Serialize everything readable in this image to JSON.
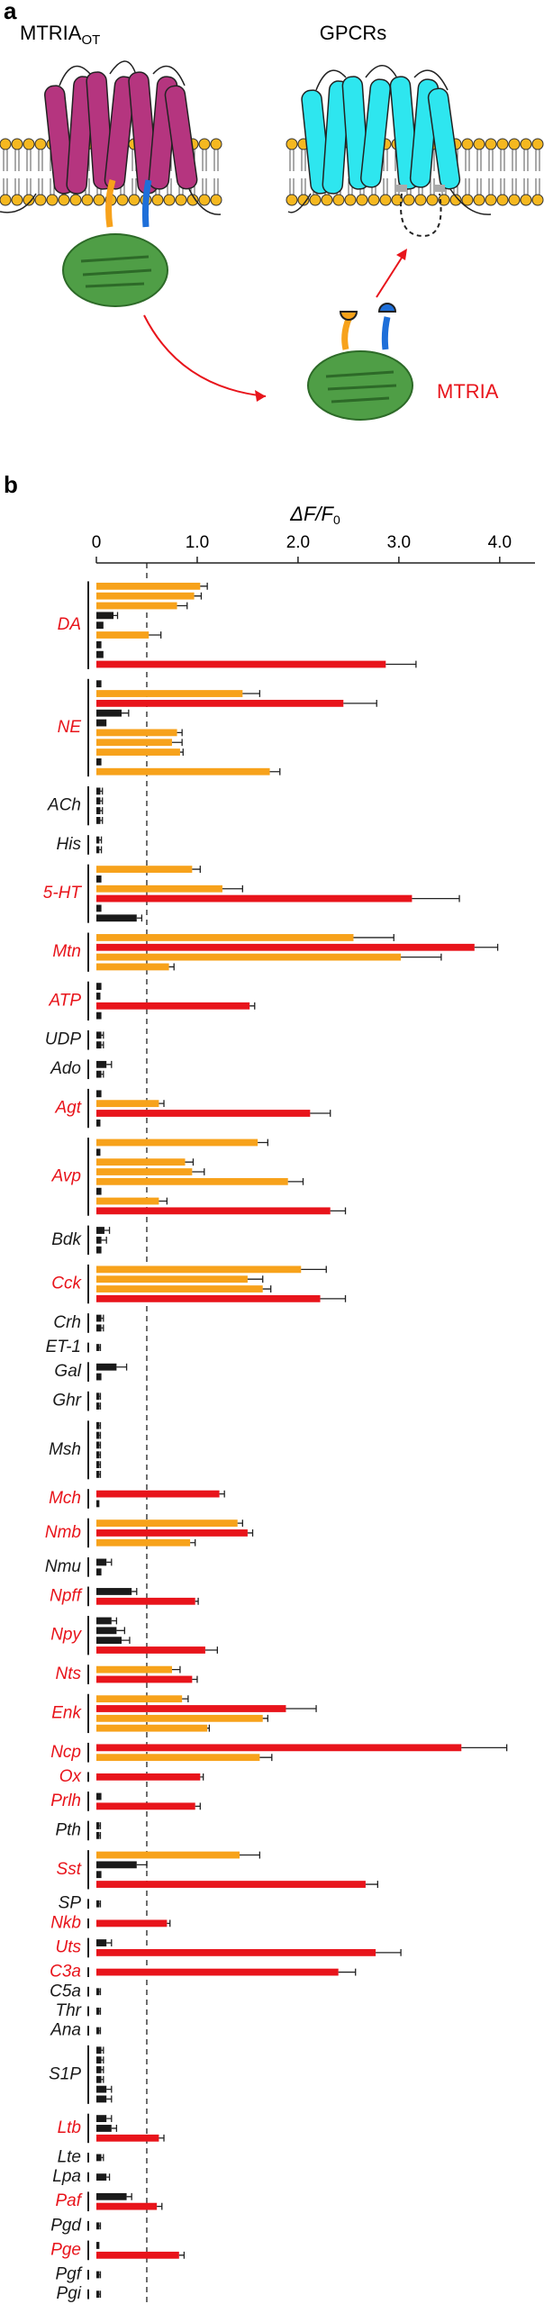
{
  "panel_a": {
    "letter": "a",
    "left_title": "MTRIA",
    "left_title_sub": "OT",
    "right_title": "GPCRs",
    "product_label": "MTRIA"
  },
  "chart_data": {
    "type": "bar",
    "panel_letter": "b",
    "orientation": "horizontal",
    "xlabel": "ΔF/F",
    "xlabel_sub": "0",
    "xlim": [
      0,
      4.35
    ],
    "xticks": [
      0,
      {
        "value": 1,
        "label": "1.0"
      },
      {
        "value": 2,
        "label": "2.0"
      },
      {
        "value": 3,
        "label": "3.0"
      },
      {
        "value": 4,
        "label": "4.0"
      }
    ],
    "reference_line": 0.5,
    "groups": [
      {
        "label": "DA",
        "label_color": "#e8141b",
        "values": [
          1.03,
          0.97,
          0.8,
          0.17,
          0.07,
          0.52,
          0.05,
          0.07,
          2.87
        ],
        "errors": [
          0.07,
          0.07,
          0.1,
          0.04,
          0,
          0.12,
          0,
          0,
          0.3
        ],
        "colors": [
          "#f7a21b",
          "#f7a21b",
          "#f7a21b",
          "#1a1a1a",
          "#1a1a1a",
          "#f7a21b",
          "#1a1a1a",
          "#1a1a1a",
          "#e8141b"
        ]
      },
      {
        "label": "NE",
        "label_color": "#e8141b",
        "values": [
          0.05,
          1.45,
          2.45,
          0.25,
          0.1,
          0.8,
          0.75,
          0.83,
          0.05,
          1.72
        ],
        "errors": [
          0,
          0.17,
          0.33,
          0.07,
          0,
          0.05,
          0.1,
          0.03,
          0,
          0.1
        ],
        "colors": [
          "#1a1a1a",
          "#f7a21b",
          "#e8141b",
          "#1a1a1a",
          "#1a1a1a",
          "#f7a21b",
          "#f7a21b",
          "#f7a21b",
          "#1a1a1a",
          "#f7a21b"
        ]
      },
      {
        "label": "ACh",
        "label_color": "#1a1a1a",
        "values": [
          0.04,
          0.04,
          0.04,
          0.04
        ],
        "errors": [
          0.02,
          0.02,
          0.02,
          0.02
        ],
        "colors": [
          "#1a1a1a",
          "#1a1a1a",
          "#1a1a1a",
          "#1a1a1a"
        ]
      },
      {
        "label": "His",
        "label_color": "#1a1a1a",
        "values": [
          0.03,
          0.03
        ],
        "errors": [
          0.02,
          0.02
        ],
        "colors": [
          "#1a1a1a",
          "#1a1a1a"
        ]
      },
      {
        "label": "5-HT",
        "label_color": "#e8141b",
        "values": [
          0.95,
          0.05,
          1.25,
          3.13,
          0.05,
          0.4
        ],
        "errors": [
          0.08,
          0,
          0.2,
          0.47,
          0,
          0.05
        ],
        "colors": [
          "#f7a21b",
          "#1a1a1a",
          "#f7a21b",
          "#e8141b",
          "#1a1a1a",
          "#1a1a1a"
        ]
      },
      {
        "label": "Mtn",
        "label_color": "#e8141b",
        "values": [
          2.55,
          3.75,
          3.02,
          0.72
        ],
        "errors": [
          0.4,
          0.23,
          0.4,
          0.05
        ],
        "colors": [
          "#f7a21b",
          "#e8141b",
          "#f7a21b",
          "#f7a21b"
        ]
      },
      {
        "label": "ATP",
        "label_color": "#e8141b",
        "values": [
          0.05,
          0.04,
          1.52,
          0.05
        ],
        "errors": [
          0,
          0,
          0.05,
          0
        ],
        "colors": [
          "#1a1a1a",
          "#1a1a1a",
          "#e8141b",
          "#1a1a1a"
        ]
      },
      {
        "label": "UDP",
        "label_color": "#1a1a1a",
        "values": [
          0.05,
          0.05
        ],
        "errors": [
          0.02,
          0.02
        ],
        "colors": [
          "#1a1a1a",
          "#1a1a1a"
        ]
      },
      {
        "label": "Ado",
        "label_color": "#1a1a1a",
        "values": [
          0.1,
          0.05
        ],
        "errors": [
          0.05,
          0.02
        ],
        "colors": [
          "#1a1a1a",
          "#1a1a1a"
        ]
      },
      {
        "label": "Agt",
        "label_color": "#e8141b",
        "values": [
          0.05,
          0.62,
          2.12,
          0.04
        ],
        "errors": [
          0,
          0.05,
          0.2,
          0
        ],
        "colors": [
          "#1a1a1a",
          "#f7a21b",
          "#e8141b",
          "#1a1a1a"
        ]
      },
      {
        "label": "Avp",
        "label_color": "#e8141b",
        "values": [
          1.6,
          0.04,
          0.88,
          0.95,
          1.9,
          0.05,
          0.62,
          2.32
        ],
        "errors": [
          0.1,
          0,
          0.08,
          0.12,
          0.15,
          0,
          0.08,
          0.15
        ],
        "colors": [
          "#f7a21b",
          "#1a1a1a",
          "#f7a21b",
          "#f7a21b",
          "#f7a21b",
          "#1a1a1a",
          "#f7a21b",
          "#e8141b"
        ]
      },
      {
        "label": "Bdk",
        "label_color": "#1a1a1a",
        "values": [
          0.08,
          0.05,
          0.05
        ],
        "errors": [
          0.05,
          0.05,
          0
        ],
        "colors": [
          "#1a1a1a",
          "#1a1a1a",
          "#1a1a1a"
        ]
      },
      {
        "label": "Cck",
        "label_color": "#e8141b",
        "values": [
          2.03,
          1.5,
          1.65,
          2.22
        ],
        "errors": [
          0.25,
          0.15,
          0.08,
          0.25
        ],
        "colors": [
          "#f7a21b",
          "#f7a21b",
          "#f7a21b",
          "#e8141b"
        ]
      },
      {
        "label": "Crh",
        "label_color": "#1a1a1a",
        "values": [
          0.05,
          0.05
        ],
        "errors": [
          0.02,
          0.02
        ],
        "colors": [
          "#1a1a1a",
          "#1a1a1a"
        ]
      },
      {
        "label": "ET-1",
        "label_color": "#1a1a1a",
        "values": [
          0.03
        ],
        "errors": [
          0.01
        ],
        "colors": [
          "#1a1a1a"
        ]
      },
      {
        "label": "Gal",
        "label_color": "#1a1a1a",
        "values": [
          0.2,
          0.05
        ],
        "errors": [
          0.1,
          0
        ],
        "colors": [
          "#1a1a1a",
          "#1a1a1a"
        ]
      },
      {
        "label": "Ghr",
        "label_color": "#1a1a1a",
        "values": [
          0.03,
          0.03
        ],
        "errors": [
          0.01,
          0.01
        ],
        "colors": [
          "#1a1a1a",
          "#1a1a1a"
        ]
      },
      {
        "label": "Msh",
        "label_color": "#1a1a1a",
        "values": [
          0.03,
          0.03,
          0.03,
          0.03,
          0.03,
          0.03
        ],
        "errors": [
          0.01,
          0.01,
          0.01,
          0.01,
          0.01,
          0.01
        ],
        "colors": [
          "#1a1a1a",
          "#1a1a1a",
          "#1a1a1a",
          "#1a1a1a",
          "#1a1a1a",
          "#1a1a1a"
        ]
      },
      {
        "label": "Mch",
        "label_color": "#e8141b",
        "values": [
          1.22,
          0.03
        ],
        "errors": [
          0.05,
          0
        ],
        "colors": [
          "#e8141b",
          "#1a1a1a"
        ]
      },
      {
        "label": "Nmb",
        "label_color": "#e8141b",
        "values": [
          1.4,
          1.5,
          0.93
        ],
        "errors": [
          0.05,
          0.05,
          0.05
        ],
        "colors": [
          "#f7a21b",
          "#e8141b",
          "#f7a21b"
        ]
      },
      {
        "label": "Nmu",
        "label_color": "#1a1a1a",
        "values": [
          0.1,
          0.05
        ],
        "errors": [
          0.05,
          0
        ],
        "colors": [
          "#1a1a1a",
          "#1a1a1a"
        ]
      },
      {
        "label": "Npff",
        "label_color": "#e8141b",
        "values": [
          0.35,
          0.98
        ],
        "errors": [
          0.05,
          0.03
        ],
        "colors": [
          "#1a1a1a",
          "#e8141b"
        ]
      },
      {
        "label": "Npy",
        "label_color": "#e8141b",
        "values": [
          0.15,
          0.2,
          0.25,
          1.08
        ],
        "errors": [
          0.05,
          0.08,
          0.08,
          0.12
        ],
        "colors": [
          "#1a1a1a",
          "#1a1a1a",
          "#1a1a1a",
          "#e8141b"
        ]
      },
      {
        "label": "Nts",
        "label_color": "#e8141b",
        "values": [
          0.75,
          0.95
        ],
        "errors": [
          0.08,
          0.05
        ],
        "colors": [
          "#f7a21b",
          "#e8141b"
        ]
      },
      {
        "label": "Enk",
        "label_color": "#e8141b",
        "values": [
          0.85,
          1.88,
          1.65,
          1.1
        ],
        "errors": [
          0.06,
          0.3,
          0.05,
          0.02
        ],
        "colors": [
          "#f7a21b",
          "#e8141b",
          "#f7a21b",
          "#f7a21b"
        ]
      },
      {
        "label": "Ncp",
        "label_color": "#e8141b",
        "values": [
          3.62,
          1.62
        ],
        "errors": [
          0.45,
          0.12
        ],
        "colors": [
          "#e8141b",
          "#f7a21b"
        ]
      },
      {
        "label": "Ox",
        "label_color": "#e8141b",
        "values": [
          1.03
        ],
        "errors": [
          0.03
        ],
        "colors": [
          "#e8141b"
        ]
      },
      {
        "label": "Prlh",
        "label_color": "#e8141b",
        "values": [
          0.05,
          0.98
        ],
        "errors": [
          0,
          0.05
        ],
        "colors": [
          "#1a1a1a",
          "#e8141b"
        ]
      },
      {
        "label": "Pth",
        "label_color": "#1a1a1a",
        "values": [
          0.03,
          0.03
        ],
        "errors": [
          0.01,
          0.01
        ],
        "colors": [
          "#1a1a1a",
          "#1a1a1a"
        ]
      },
      {
        "label": "Sst",
        "label_color": "#e8141b",
        "values": [
          1.42,
          0.4,
          0.05,
          2.67
        ],
        "errors": [
          0.2,
          0.1,
          0,
          0.12
        ],
        "colors": [
          "#f7a21b",
          "#1a1a1a",
          "#1a1a1a",
          "#e8141b"
        ]
      },
      {
        "label": "SP",
        "label_color": "#1a1a1a",
        "values": [
          0.03
        ],
        "errors": [
          0.01
        ],
        "colors": [
          "#1a1a1a"
        ]
      },
      {
        "label": "Nkb",
        "label_color": "#e8141b",
        "values": [
          0.7
        ],
        "errors": [
          0.03
        ],
        "colors": [
          "#e8141b"
        ]
      },
      {
        "label": "Uts",
        "label_color": "#e8141b",
        "values": [
          0.1,
          2.77
        ],
        "errors": [
          0.05,
          0.25
        ],
        "colors": [
          "#1a1a1a",
          "#e8141b"
        ]
      },
      {
        "label": "C3a",
        "label_color": "#e8141b",
        "values": [
          2.4
        ],
        "errors": [
          0.17
        ],
        "colors": [
          "#e8141b"
        ]
      },
      {
        "label": "C5a",
        "label_color": "#1a1a1a",
        "values": [
          0.03
        ],
        "errors": [
          0.01
        ],
        "colors": [
          "#1a1a1a"
        ]
      },
      {
        "label": "Thr",
        "label_color": "#1a1a1a",
        "values": [
          0.03
        ],
        "errors": [
          0.01
        ],
        "colors": [
          "#1a1a1a"
        ]
      },
      {
        "label": "Ana",
        "label_color": "#1a1a1a",
        "values": [
          0.03
        ],
        "errors": [
          0.01
        ],
        "colors": [
          "#1a1a1a"
        ]
      },
      {
        "label": "S1P",
        "label_color": "#1a1a1a",
        "values": [
          0.05,
          0.05,
          0.05,
          0.05,
          0.1,
          0.1
        ],
        "errors": [
          0.02,
          0.02,
          0.02,
          0.02,
          0.05,
          0.05
        ],
        "colors": [
          "#1a1a1a",
          "#1a1a1a",
          "#1a1a1a",
          "#1a1a1a",
          "#1a1a1a",
          "#1a1a1a"
        ]
      },
      {
        "label": "Ltb",
        "label_color": "#e8141b",
        "values": [
          0.1,
          0.15,
          0.62
        ],
        "errors": [
          0.05,
          0.05,
          0.05
        ],
        "colors": [
          "#1a1a1a",
          "#1a1a1a",
          "#e8141b"
        ]
      },
      {
        "label": "Lte",
        "label_color": "#1a1a1a",
        "values": [
          0.05
        ],
        "errors": [
          0.02
        ],
        "colors": [
          "#1a1a1a"
        ]
      },
      {
        "label": "Lpa",
        "label_color": "#1a1a1a",
        "values": [
          0.1
        ],
        "errors": [
          0.03
        ],
        "colors": [
          "#1a1a1a"
        ]
      },
      {
        "label": "Paf",
        "label_color": "#e8141b",
        "values": [
          0.3,
          0.6
        ],
        "errors": [
          0.05,
          0.05
        ],
        "colors": [
          "#1a1a1a",
          "#e8141b"
        ]
      },
      {
        "label": "Pgd",
        "label_color": "#1a1a1a",
        "values": [
          0.03
        ],
        "errors": [
          0.01
        ],
        "colors": [
          "#1a1a1a"
        ]
      },
      {
        "label": "Pge",
        "label_color": "#e8141b",
        "values": [
          0.03,
          0.82
        ],
        "errors": [
          0,
          0.05
        ],
        "colors": [
          "#1a1a1a",
          "#e8141b"
        ]
      },
      {
        "label": "Pgf",
        "label_color": "#1a1a1a",
        "values": [
          0.03
        ],
        "errors": [
          0.01
        ],
        "colors": [
          "#1a1a1a"
        ]
      },
      {
        "label": "Pgi",
        "label_color": "#1a1a1a",
        "values": [
          0.03
        ],
        "errors": [
          0.01
        ],
        "colors": [
          "#1a1a1a"
        ]
      }
    ]
  }
}
